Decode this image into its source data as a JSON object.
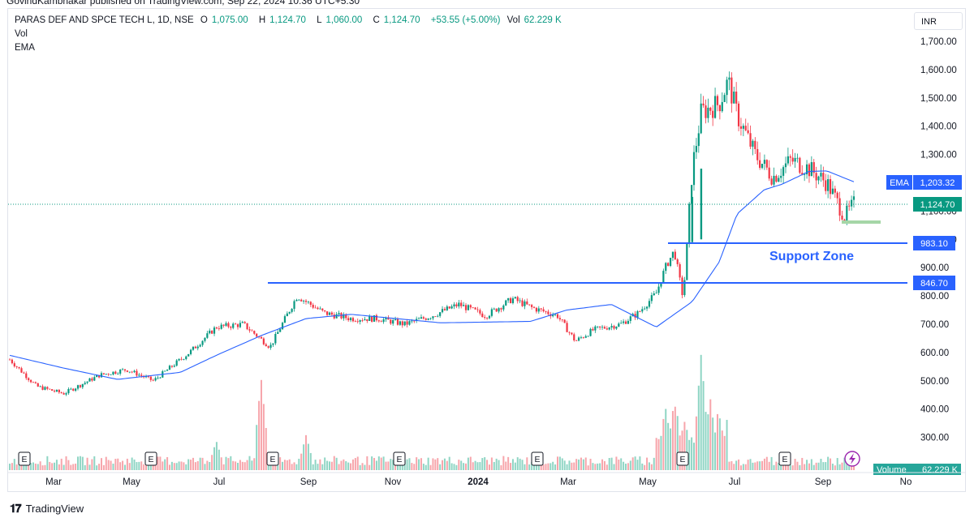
{
  "caption": "GovindKambhakar published on TradingView.com, Sep 22, 2024 10:36 UTC+5:30",
  "legend": {
    "symbol": "PARAS DEF AND SPCE TECH L, 1D, NSE",
    "open_label": "O",
    "open": "1,075.00",
    "high_label": "H",
    "high": "1,124.70",
    "low_label": "L",
    "low": "1,060.00",
    "close_label": "C",
    "close": "1,124.70",
    "change": "+53.55 (+5.00%)",
    "vol_label": "Vol",
    "vol": "62.229 K",
    "indicator1": "Vol",
    "indicator2": "EMA"
  },
  "currency": "INR",
  "footer": {
    "brand": "TradingView",
    "logo": "tradingview-logo"
  },
  "colors": {
    "up": "#089981",
    "down": "#f23645",
    "ema": "#2962ff",
    "line": "#2962ff",
    "support_text": "#2962ff",
    "current": "#089981",
    "volume_label_bg": "#26a69a"
  },
  "chart_data": {
    "type": "candlestick",
    "y_axis_ticks": [
      "1,700.00",
      "1,600.00",
      "1,500.00",
      "1,400.00",
      "1,300.00",
      "1,200.00",
      "1,100.00",
      "1,000.00",
      "900.00",
      "800.00",
      "700.00",
      "600.00",
      "500.00",
      "400.00",
      "300.00"
    ],
    "ylim": [
      270,
      1720
    ],
    "x_tick_labels": [
      "Mar",
      "May",
      "Jul",
      "Sep",
      "Nov",
      "2024",
      "Mar",
      "May",
      "Jul",
      "Sep",
      "No"
    ],
    "price_labels": [
      {
        "name": "EMA",
        "value": "1,203.32"
      },
      {
        "name": "close",
        "value": "1,124.70"
      },
      {
        "name": "upper-support",
        "value": "983.10"
      },
      {
        "name": "lower-support",
        "value": "846.70"
      }
    ],
    "volume_label": {
      "name": "Volume",
      "value": "62.229 K"
    },
    "annotation": "Support Zone",
    "support_lines": [
      983.1,
      846.7
    ],
    "earnings_markers": [
      "E",
      "E",
      "E",
      "E",
      "E",
      "E",
      "E"
    ],
    "series_ema_anchors": [
      [
        0,
        590
      ],
      [
        6,
        545
      ],
      [
        12,
        505
      ],
      [
        19,
        530
      ],
      [
        23,
        590
      ],
      [
        28,
        660
      ],
      [
        33,
        720
      ],
      [
        38,
        735
      ],
      [
        48,
        705
      ],
      [
        58,
        710
      ],
      [
        62,
        750
      ],
      [
        67,
        770
      ],
      [
        72,
        690
      ],
      [
        76,
        780
      ],
      [
        79,
        920
      ],
      [
        81,
        1090
      ],
      [
        84,
        1175
      ],
      [
        86,
        1195
      ],
      [
        89,
        1240
      ],
      [
        91,
        1242
      ],
      [
        94,
        1203.32
      ]
    ],
    "series_close_anchors": [
      [
        0,
        575
      ],
      [
        3,
        480
      ],
      [
        6,
        455
      ],
      [
        10,
        520
      ],
      [
        13,
        540
      ],
      [
        16,
        500
      ],
      [
        20,
        600
      ],
      [
        23,
        690
      ],
      [
        26,
        700
      ],
      [
        29,
        620
      ],
      [
        32,
        800
      ],
      [
        35,
        740
      ],
      [
        38,
        720
      ],
      [
        41,
        720
      ],
      [
        44,
        700
      ],
      [
        47,
        730
      ],
      [
        50,
        770
      ],
      [
        53,
        730
      ],
      [
        56,
        790
      ],
      [
        58,
        760
      ],
      [
        61,
        730
      ],
      [
        63,
        640
      ],
      [
        65,
        680
      ],
      [
        68,
        700
      ],
      [
        70,
        740
      ],
      [
        72,
        810
      ],
      [
        73,
        900
      ],
      [
        74,
        960
      ],
      [
        75,
        790
      ],
      [
        76,
        1250
      ],
      [
        77,
        1450
      ],
      [
        79,
        1480
      ],
      [
        80,
        1560
      ],
      [
        81,
        1440
      ],
      [
        83,
        1300
      ],
      [
        85,
        1220
      ],
      [
        87,
        1280
      ],
      [
        89,
        1250
      ],
      [
        91,
        1200
      ],
      [
        93,
        1080
      ],
      [
        94,
        1124.7
      ]
    ],
    "volume_spikes": [
      {
        "x": 28,
        "v": 0.78
      },
      {
        "x": 73,
        "v": 0.55
      },
      {
        "x": 74,
        "v": 0.6
      },
      {
        "x": 77,
        "v": 1.0
      },
      {
        "x": 78,
        "v": 0.62
      },
      {
        "x": 33,
        "v": 0.3
      },
      {
        "x": 23,
        "v": 0.25
      }
    ]
  }
}
